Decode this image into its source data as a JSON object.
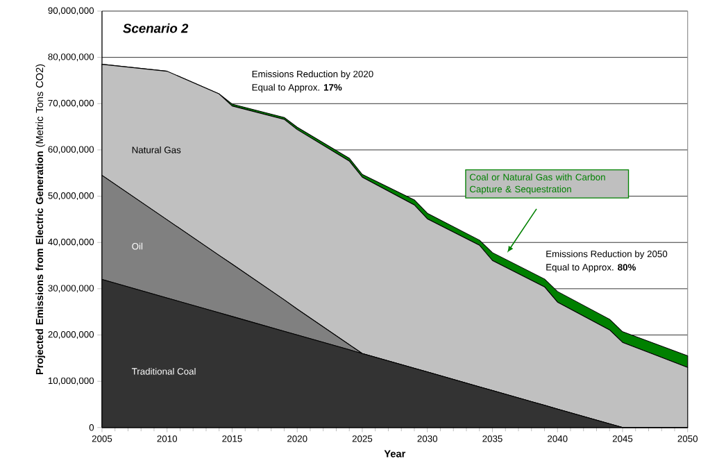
{
  "chart_data": {
    "type": "area",
    "stacked": true,
    "title": "Scenario 2",
    "xlabel": "Year",
    "ylabel": "**Projected Emissions from Electric Generation** (Metric Tons CO2)",
    "x": [
      2005,
      2010,
      2014,
      2015,
      2019,
      2020,
      2024,
      2025,
      2029,
      2030,
      2034,
      2035,
      2039,
      2040,
      2044,
      2045,
      2050
    ],
    "series": [
      {
        "name": "Traditional Coal",
        "color": "#333333",
        "values": [
          32000000,
          28000000,
          24800000,
          24000000,
          20800000,
          20000000,
          16800000,
          16000000,
          12800000,
          12000000,
          8800000,
          8000000,
          4800000,
          4000000,
          800000,
          0,
          0
        ]
      },
      {
        "name": "Oil",
        "color": "#808080",
        "values": [
          22500000,
          16900000,
          12400000,
          11300000,
          6800000,
          5600000,
          1100000,
          0,
          0,
          0,
          0,
          0,
          0,
          0,
          0,
          0,
          0
        ]
      },
      {
        "name": "Natural Gas",
        "color": "#c0c0c0",
        "values": [
          24000000,
          32100000,
          34900000,
          34200000,
          39000000,
          38800000,
          39700000,
          38100000,
          35300000,
          33100000,
          30600000,
          28100000,
          25600000,
          23100000,
          20300000,
          18400000,
          13000000
        ]
      },
      {
        "name": "Coal or Natural Gas with Carbon Capture & Sequestration",
        "color": "#008000",
        "values": [
          0,
          0,
          0,
          400000,
          400000,
          500000,
          600000,
          600000,
          1100000,
          1200000,
          1100000,
          1700000,
          1700000,
          2300000,
          2300000,
          2300000,
          2500000
        ]
      }
    ],
    "xlim": [
      2005,
      2050
    ],
    "xticks": [
      2005,
      2010,
      2015,
      2020,
      2025,
      2030,
      2035,
      2040,
      2045,
      2050
    ],
    "ylim": [
      0,
      90000000
    ],
    "yticks": [
      0,
      {
        "value": 10000000,
        "label": "10,000,000"
      },
      {
        "value": 20000000,
        "label": "20,000,000"
      },
      {
        "value": 30000000,
        "label": "30,000,000"
      },
      {
        "value": 40000000,
        "label": "40,000,000"
      },
      {
        "value": 50000000,
        "label": "50,000,000"
      },
      {
        "value": 60000000,
        "label": "60,000,000"
      },
      {
        "value": 70000000,
        "label": "70,000,000"
      },
      {
        "value": 80000000,
        "label": "80,000,000"
      },
      {
        "value": 90000000,
        "label": "90,000,000"
      }
    ],
    "grid": "y",
    "annotations": [
      "Emissions Reduction by 2020",
      "Equal to Approx. **17%**",
      "Emissions Reduction by 2050",
      "Equal to Approx. **80%**"
    ]
  }
}
